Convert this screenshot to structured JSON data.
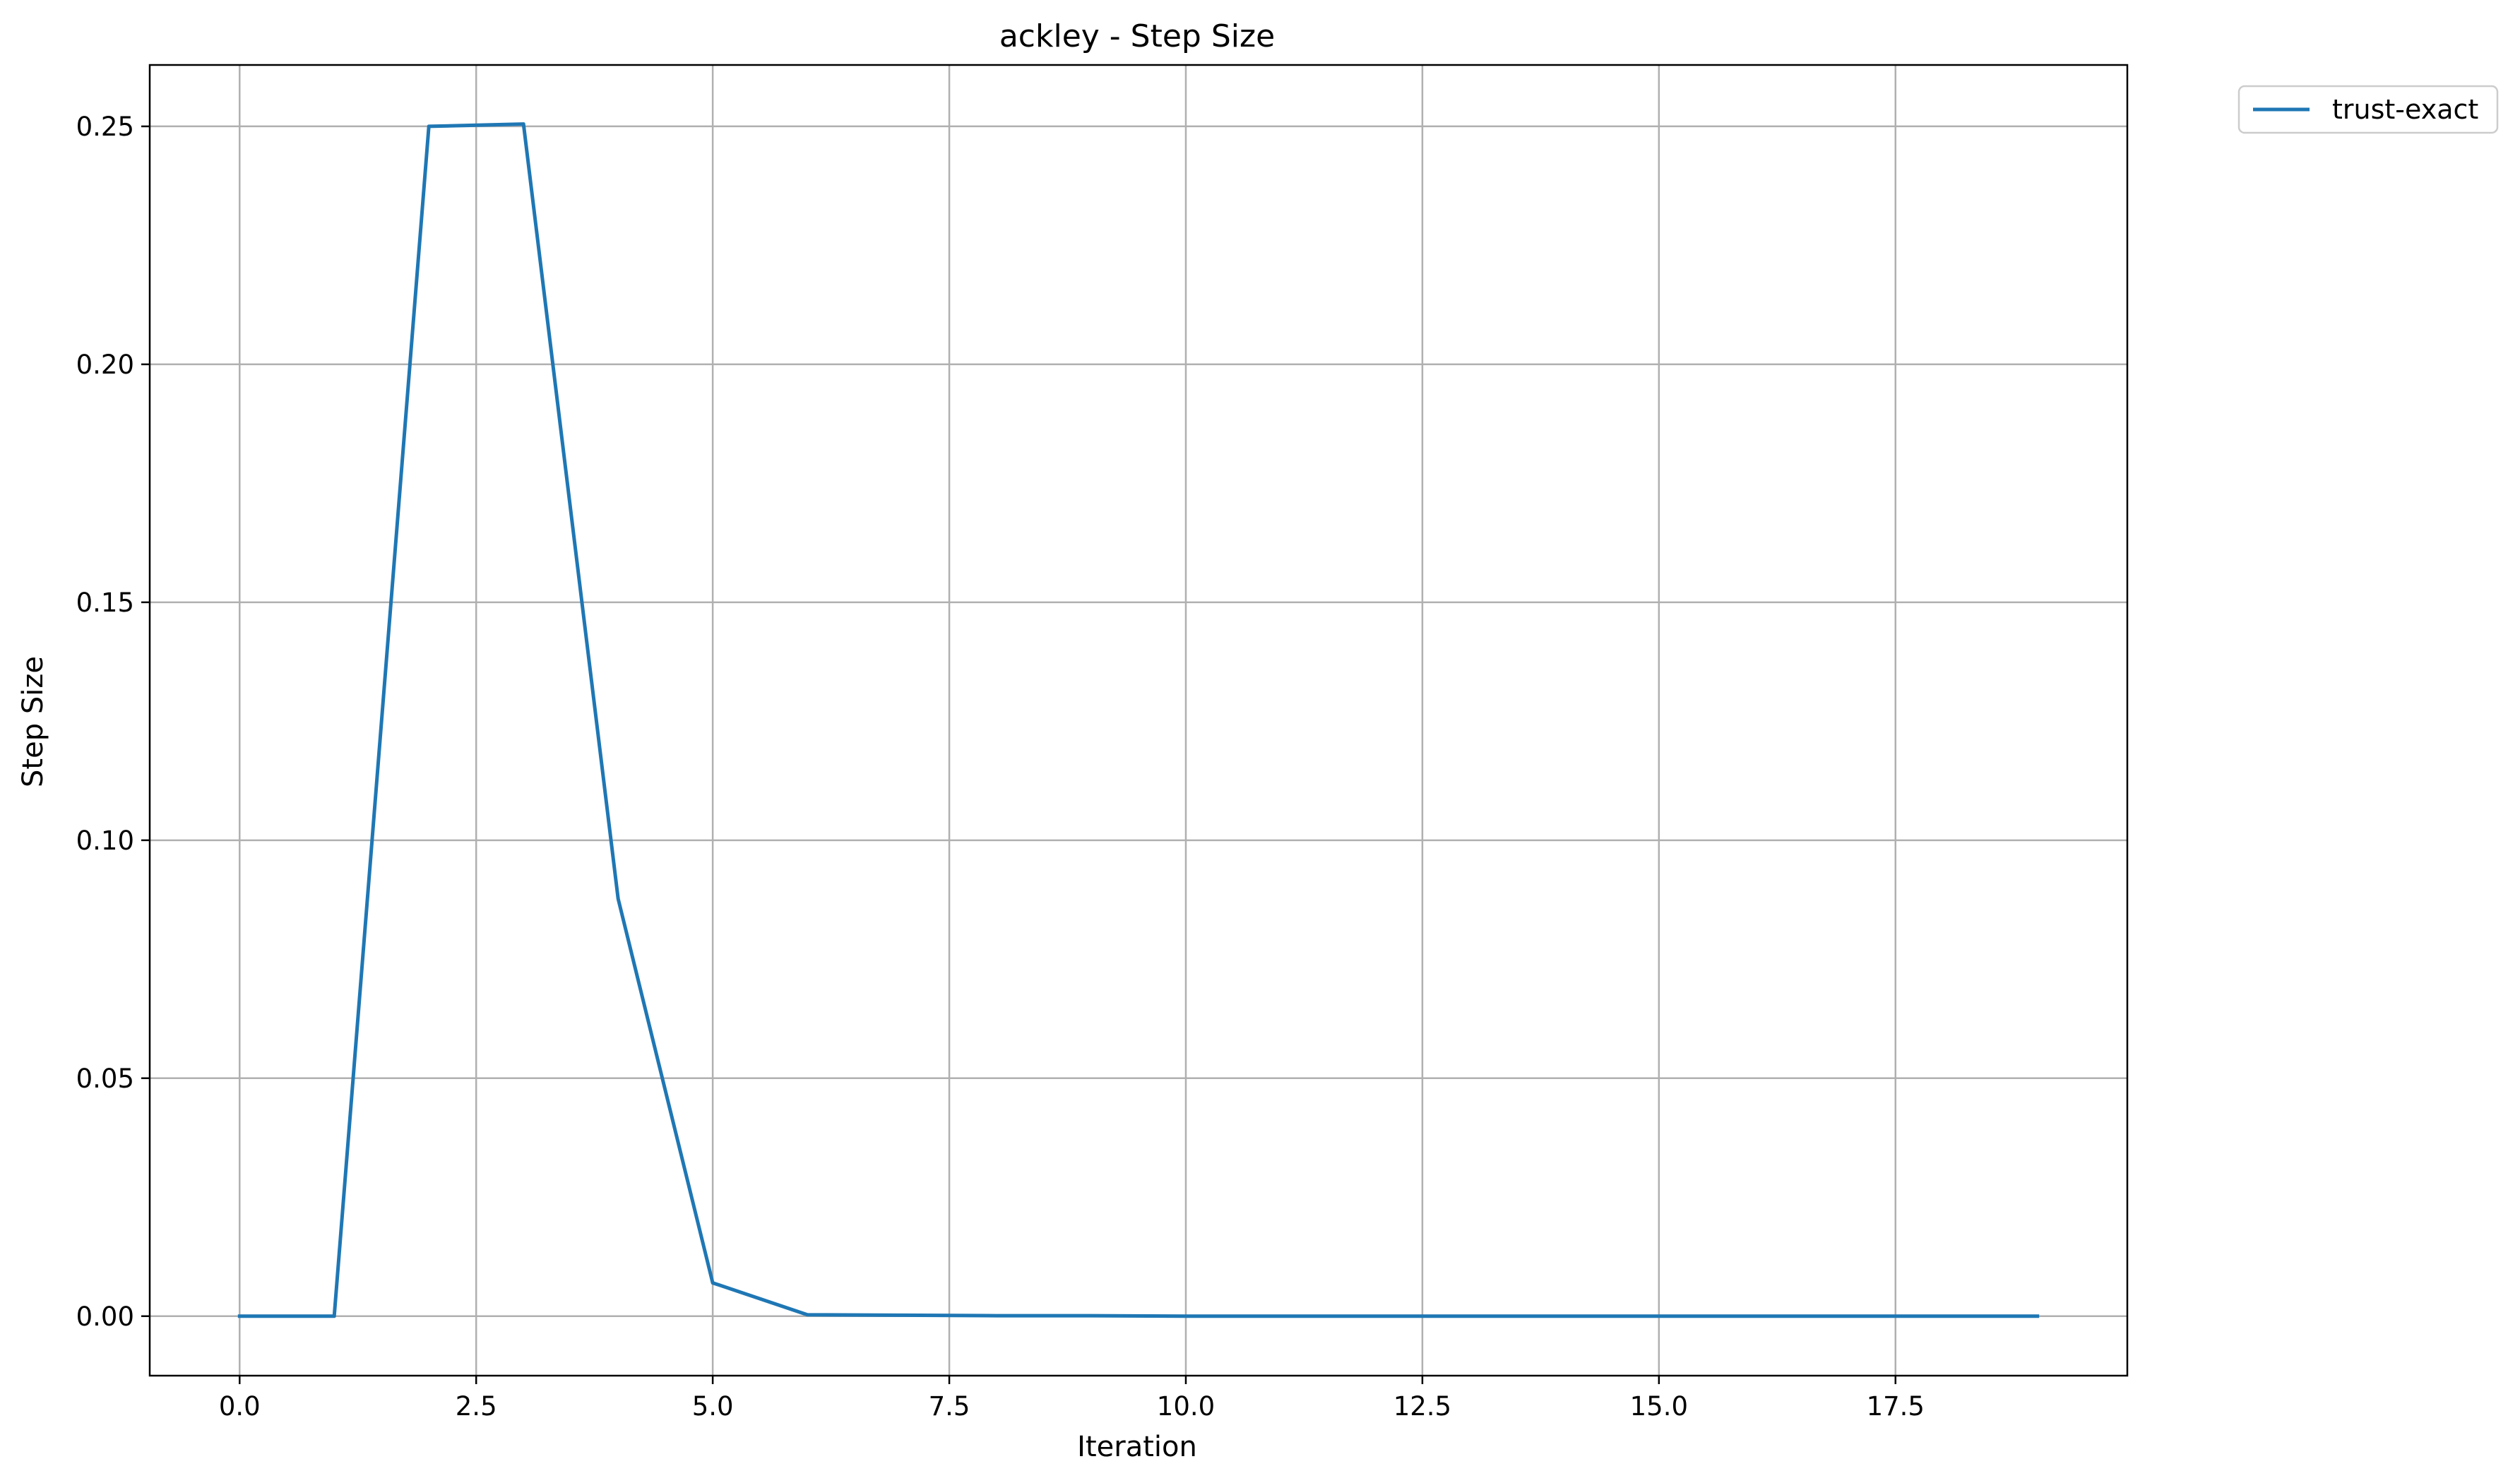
{
  "chart_data": {
    "type": "line",
    "title": "ackley - Step Size",
    "xlabel": "Iteration",
    "ylabel": "Step Size",
    "xlim": [
      -0.95,
      19.95
    ],
    "ylim": [
      -0.0125,
      0.2629
    ],
    "xticks": [
      0,
      2.5,
      5,
      7.5,
      10,
      12.5,
      15,
      17.5
    ],
    "xtick_labels": [
      "0.0",
      "2.5",
      "5.0",
      "7.5",
      "10.0",
      "12.5",
      "15.0",
      "17.5"
    ],
    "yticks": [
      0,
      0.05,
      0.1,
      0.15,
      0.2,
      0.25
    ],
    "ytick_labels": [
      "0.00",
      "0.05",
      "0.10",
      "0.15",
      "0.20",
      "0.25"
    ],
    "grid": true,
    "legend_position": "outside-top-right",
    "series": [
      {
        "name": "trust-exact",
        "color": "#1f77b4",
        "x": [
          0,
          1,
          2,
          3,
          4,
          5,
          6,
          7,
          8,
          9,
          10,
          11,
          12,
          13,
          14,
          15,
          16,
          17,
          18,
          19
        ],
        "y": [
          0.0,
          0.0,
          0.25,
          0.2505,
          0.0877,
          0.007,
          0.0003,
          0.0002,
          0.0001,
          0.0001,
          0.0,
          0.0,
          0.0,
          0.0,
          0.0,
          0.0,
          0.0,
          0.0,
          0.0,
          0.0
        ]
      }
    ]
  }
}
